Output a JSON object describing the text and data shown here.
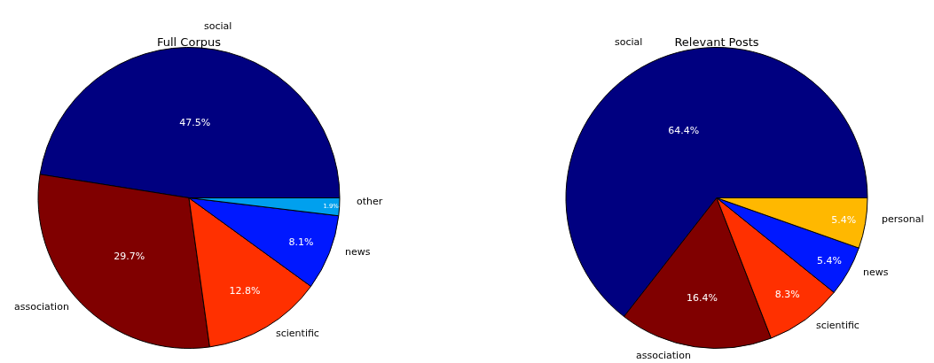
{
  "chart_data": [
    {
      "type": "pie",
      "title": "Full Corpus",
      "categories": [
        "social",
        "association",
        "scientific",
        "news",
        "other"
      ],
      "values": [
        47.5,
        29.7,
        12.8,
        8.1,
        1.9
      ],
      "value_labels": [
        "47.5%",
        "29.7%",
        "12.8%",
        "8.1%",
        "1.9%"
      ],
      "colors": [
        "#000080",
        "#800000",
        "#ff3000",
        "#0018ff",
        "#00a0ee"
      ]
    },
    {
      "type": "pie",
      "title": "Relevant Posts",
      "categories": [
        "social",
        "association",
        "scientific",
        "news",
        "personal"
      ],
      "values": [
        64.4,
        16.4,
        8.3,
        5.4,
        5.4
      ],
      "value_labels": [
        "64.4%",
        "16.4%",
        "8.3%",
        "5.4%",
        "5.4%"
      ],
      "colors": [
        "#000080",
        "#800000",
        "#ff3000",
        "#0018ff",
        "#ffb800"
      ]
    }
  ]
}
